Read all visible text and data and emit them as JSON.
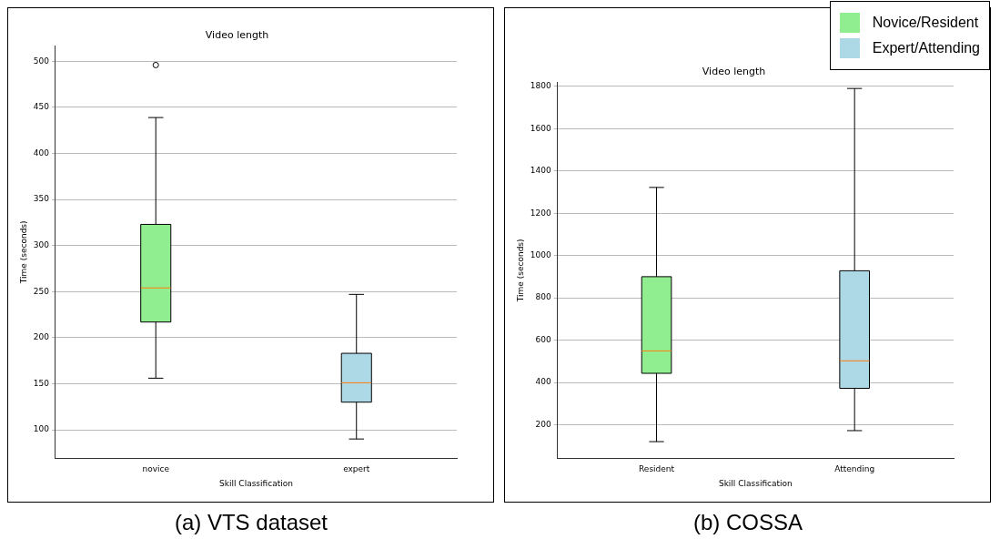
{
  "chart_data": [
    {
      "type": "box",
      "title": "Video length",
      "xlabel": "Skill Classification",
      "ylabel": "Time (seconds)",
      "categories": [
        "novice",
        "expert"
      ],
      "boxes": [
        {
          "low": 156,
          "q1": 217,
          "median": 254,
          "q3": 323,
          "high": 439,
          "outliers": [
            496
          ]
        },
        {
          "low": 90,
          "q1": 130,
          "median": 151,
          "q3": 183,
          "high": 247
        }
      ],
      "colors": [
        "#90ee90",
        "#add8e6"
      ],
      "ylim": [
        69,
        517
      ],
      "yticks": [
        100,
        150,
        200,
        250,
        300,
        350,
        400,
        450,
        500
      ],
      "grid": "y",
      "annotations": [
        "(a) VTS dataset"
      ]
    },
    {
      "type": "box",
      "title": "Video length",
      "xlabel": "Skill Classification",
      "ylabel": "Time (seconds)",
      "categories": [
        "Resident",
        "Attending"
      ],
      "series": [
        {
          "name": "Novice/Resident",
          "color": "#90ee90",
          "boxes": [
            {
              "low": 120,
              "q1": 443,
              "median": 549,
              "q3": 900,
              "high": 1322
            },
            null
          ]
        },
        {
          "name": "Expert/Attending",
          "color": "#add8e6",
          "boxes": [
            null,
            {
              "low": 172,
              "q1": 372,
              "median": 502,
              "q3": 928,
              "high": 1790
            }
          ]
        }
      ],
      "ylim": [
        41,
        1820
      ],
      "yticks": [
        200,
        400,
        600,
        800,
        1000,
        1200,
        1400,
        1600,
        1800
      ],
      "grid": "y",
      "legend": "top right",
      "annotations": [
        "(b) COSSA"
      ]
    }
  ]
}
